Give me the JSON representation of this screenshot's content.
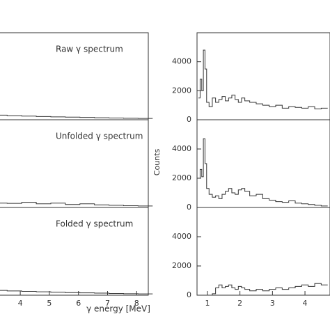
{
  "chart_data": [
    {
      "type": "step",
      "title": "Raw γ spectrum",
      "color": "#333333",
      "x": [
        3.3,
        3.8,
        4.3,
        4.8,
        5.3,
        5.8,
        6.3,
        6.8,
        7.3,
        7.8,
        8.3
      ],
      "values": [
        320,
        280,
        250,
        220,
        200,
        180,
        160,
        140,
        120,
        100,
        90
      ],
      "xlim": [
        3.28,
        8.4
      ],
      "ylim": [
        0,
        6000
      ]
    },
    {
      "type": "step",
      "title": "Unfolded γ spectrum",
      "color": "#333333",
      "x": [
        3.3,
        3.8,
        4.3,
        4.8,
        5.3,
        5.8,
        6.3,
        6.8,
        7.3,
        7.8,
        8.3
      ],
      "values": [
        300,
        280,
        350,
        250,
        300,
        200,
        250,
        180,
        150,
        120,
        100
      ],
      "xlim": [
        3.28,
        8.4
      ],
      "ylim": [
        0,
        6000
      ]
    },
    {
      "type": "step",
      "title": "Folded γ spectrum",
      "xlabel": "γ energy [MeV]",
      "color": "#333333",
      "x": [
        3.3,
        3.8,
        4.3,
        4.8,
        5.3,
        5.8,
        6.3,
        6.8,
        7.3,
        7.8,
        8.3
      ],
      "values": [
        330,
        290,
        260,
        230,
        200,
        180,
        160,
        140,
        120,
        100,
        90
      ],
      "xlim": [
        3.28,
        8.4
      ],
      "ylim": [
        0,
        6000
      ],
      "xticks": [
        4,
        5,
        6,
        7,
        8
      ]
    },
    {
      "type": "step",
      "color": "#333333",
      "x": [
        0.75,
        0.8,
        0.85,
        0.9,
        0.95,
        1.0,
        1.1,
        1.2,
        1.3,
        1.4,
        1.5,
        1.6,
        1.7,
        1.8,
        1.9,
        2.0,
        2.1,
        2.2,
        2.4,
        2.6,
        2.8,
        3.0,
        3.2,
        3.4,
        3.6,
        3.8,
        4.0,
        4.2,
        4.4,
        4.6
      ],
      "values": [
        1500,
        2800,
        2000,
        4800,
        3500,
        1200,
        900,
        1500,
        1200,
        1400,
        1600,
        1300,
        1500,
        1700,
        1400,
        1200,
        1500,
        1300,
        1200,
        1100,
        1000,
        900,
        1000,
        800,
        900,
        850,
        800,
        900,
        750,
        800
      ],
      "xlim": [
        0.68,
        4.77
      ],
      "ylim": [
        0,
        6000
      ],
      "yticks": [
        0,
        2000,
        4000
      ]
    },
    {
      "type": "step",
      "ylabel": "Counts",
      "color": "#333333",
      "x": [
        0.75,
        0.8,
        0.85,
        0.9,
        0.95,
        1.0,
        1.1,
        1.2,
        1.3,
        1.4,
        1.5,
        1.6,
        1.7,
        1.8,
        1.9,
        2.0,
        2.1,
        2.2,
        2.4,
        2.6,
        2.8,
        3.0,
        3.2,
        3.4,
        3.6,
        3.8,
        4.0,
        4.2,
        4.4,
        4.6
      ],
      "values": [
        2000,
        2600,
        2100,
        4700,
        3000,
        1300,
        900,
        700,
        800,
        600,
        900,
        1100,
        1300,
        1000,
        900,
        1200,
        1300,
        1100,
        800,
        900,
        600,
        500,
        400,
        350,
        450,
        300,
        250,
        200,
        150,
        100
      ],
      "xlim": [
        0.68,
        4.77
      ],
      "ylim": [
        0,
        6000
      ],
      "yticks": [
        0,
        2000,
        4000
      ]
    },
    {
      "type": "step",
      "color": "#333333",
      "x": [
        0.75,
        0.8,
        0.85,
        0.9,
        0.95,
        1.0,
        1.1,
        1.2,
        1.3,
        1.4,
        1.5,
        1.6,
        1.7,
        1.8,
        1.9,
        2.0,
        2.1,
        2.2,
        2.4,
        2.6,
        2.8,
        3.0,
        3.2,
        3.4,
        3.6,
        3.8,
        4.0,
        4.2,
        4.4,
        4.6
      ],
      "values": [
        0,
        0,
        0,
        0,
        0,
        0,
        0,
        100,
        500,
        700,
        500,
        600,
        700,
        500,
        400,
        600,
        500,
        400,
        300,
        400,
        300,
        400,
        500,
        400,
        500,
        600,
        700,
        600,
        800,
        700
      ],
      "xlim": [
        0.68,
        4.77
      ],
      "ylim": [
        0,
        6000
      ],
      "yticks": [
        0,
        2000,
        4000
      ],
      "xticks": [
        1,
        2,
        3,
        4
      ]
    }
  ]
}
